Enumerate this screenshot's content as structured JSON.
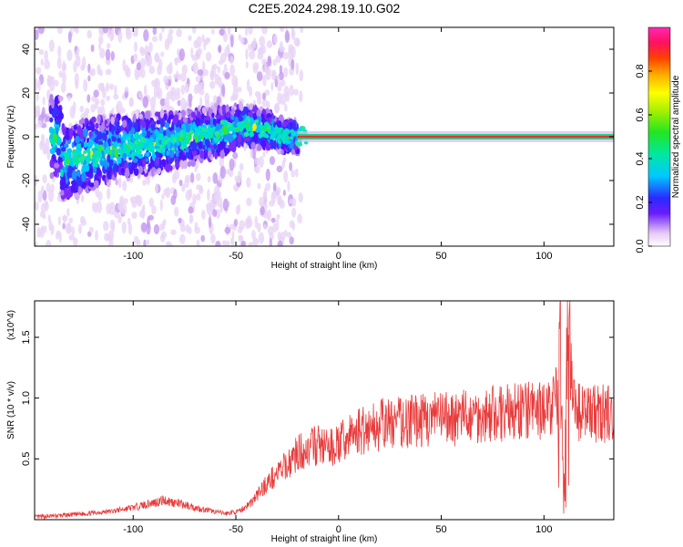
{
  "title": "C2E5.2024.298.19.10.G02",
  "chart_data": [
    {
      "type": "heatmap",
      "name": "spectrogram",
      "xlabel": "Height of straight line (km)",
      "ylabel": "Frequency (Hz)",
      "xlim": [
        -148,
        134
      ],
      "ylim": [
        -50,
        50
      ],
      "x_ticks": [
        -100,
        -50,
        0,
        50,
        100
      ],
      "y_ticks": [
        -40,
        -20,
        0,
        20,
        40
      ],
      "colorbar": {
        "label": "Normalized spectral amplitude",
        "ticks": [
          0.0,
          0.2,
          0.4,
          0.6,
          0.8
        ],
        "range": [
          0,
          1
        ],
        "colormap": "rainbow-white-to-magenta"
      },
      "ridge_x": [
        -135,
        -120,
        -100,
        -80,
        -60,
        -45,
        -35,
        -25,
        -20,
        0,
        20,
        50,
        80,
        105,
        110,
        134
      ],
      "ridge_y": [
        -12,
        -8,
        -4,
        -2,
        2,
        5,
        3,
        0,
        0,
        0,
        0,
        0,
        0,
        0,
        2,
        0
      ]
    },
    {
      "type": "line",
      "name": "snr",
      "xlabel": "Height of straight line (km)",
      "ylabel": "SNR (10 * v/v)",
      "y_multiplier": "(x10^4)",
      "xlim": [
        -148,
        134
      ],
      "ylim": [
        0,
        18000
      ],
      "x_ticks": [
        -100,
        -50,
        0,
        50,
        100
      ],
      "y_ticks": [
        0.5,
        1.0,
        1.5
      ],
      "y_tick_labels": [
        "0.5",
        "1.0",
        "1.5"
      ],
      "line_color": "#e83c3c",
      "x": [
        -148,
        -130,
        -110,
        -100,
        -90,
        -85,
        -75,
        -65,
        -55,
        -48,
        -42,
        -36,
        -30,
        -25,
        -20,
        -15,
        -10,
        -5,
        0,
        5,
        10,
        20,
        30,
        40,
        50,
        60,
        70,
        80,
        90,
        100,
        105,
        108,
        110,
        112,
        115,
        125,
        134
      ],
      "y": [
        200,
        400,
        700,
        1000,
        1400,
        1600,
        1200,
        800,
        500,
        700,
        1500,
        2800,
        3800,
        4500,
        5500,
        5800,
        6200,
        5800,
        6200,
        6800,
        7300,
        7800,
        8000,
        8200,
        8300,
        8400,
        8600,
        8800,
        8900,
        9000,
        9500,
        12000,
        3000,
        14000,
        8800,
        8800,
        8700
      ]
    }
  ]
}
